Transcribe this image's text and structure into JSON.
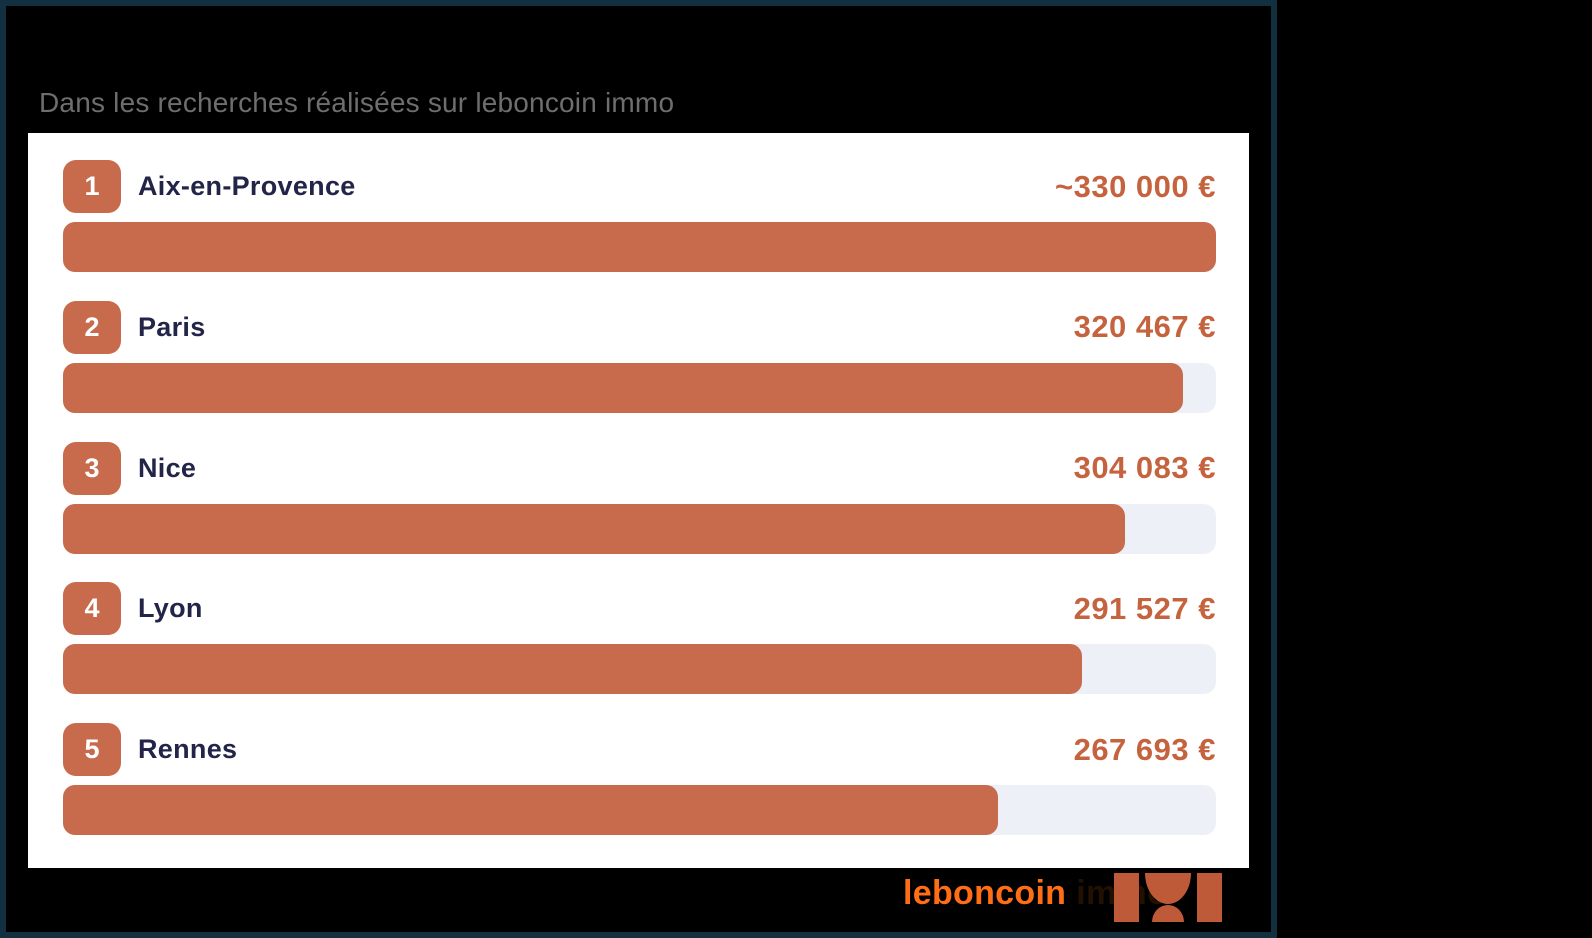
{
  "subtitle": "Dans les recherches réalisées sur leboncoin immo",
  "footer": {
    "brand": "leboncoin",
    "brand_suffix": "immo"
  },
  "colors": {
    "page_bg": "#000000",
    "frame_border": "#12303f",
    "card_bg": "#ffffff",
    "subtitle_gray": "#6e6e6e",
    "accent_bar": "#c76b4c",
    "accent_value": "#c5633e",
    "city_navy": "#222548",
    "track": "#edf1f7",
    "brand_orange": "#ff6e14",
    "logo_mark": "#bf5a39"
  },
  "chart_data": {
    "type": "bar",
    "orientation": "horizontal",
    "title": "",
    "subtitle": "Dans les recherches réalisées sur leboncoin immo",
    "categories": [
      "Aix-en-Provence",
      "Paris",
      "Nice",
      "Lyon",
      "Rennes"
    ],
    "ranks": [
      "1",
      "2",
      "3",
      "4",
      "5"
    ],
    "values": [
      330000,
      320467,
      304083,
      291527,
      267693
    ],
    "value_labels": [
      "~330 000 €",
      "320 467 €",
      "304 083 €",
      "291 527 €",
      "267 693 €"
    ],
    "max_value": 330000,
    "unit": "€",
    "xlim": [
      0,
      330000
    ],
    "grid": false,
    "legend": "none"
  }
}
